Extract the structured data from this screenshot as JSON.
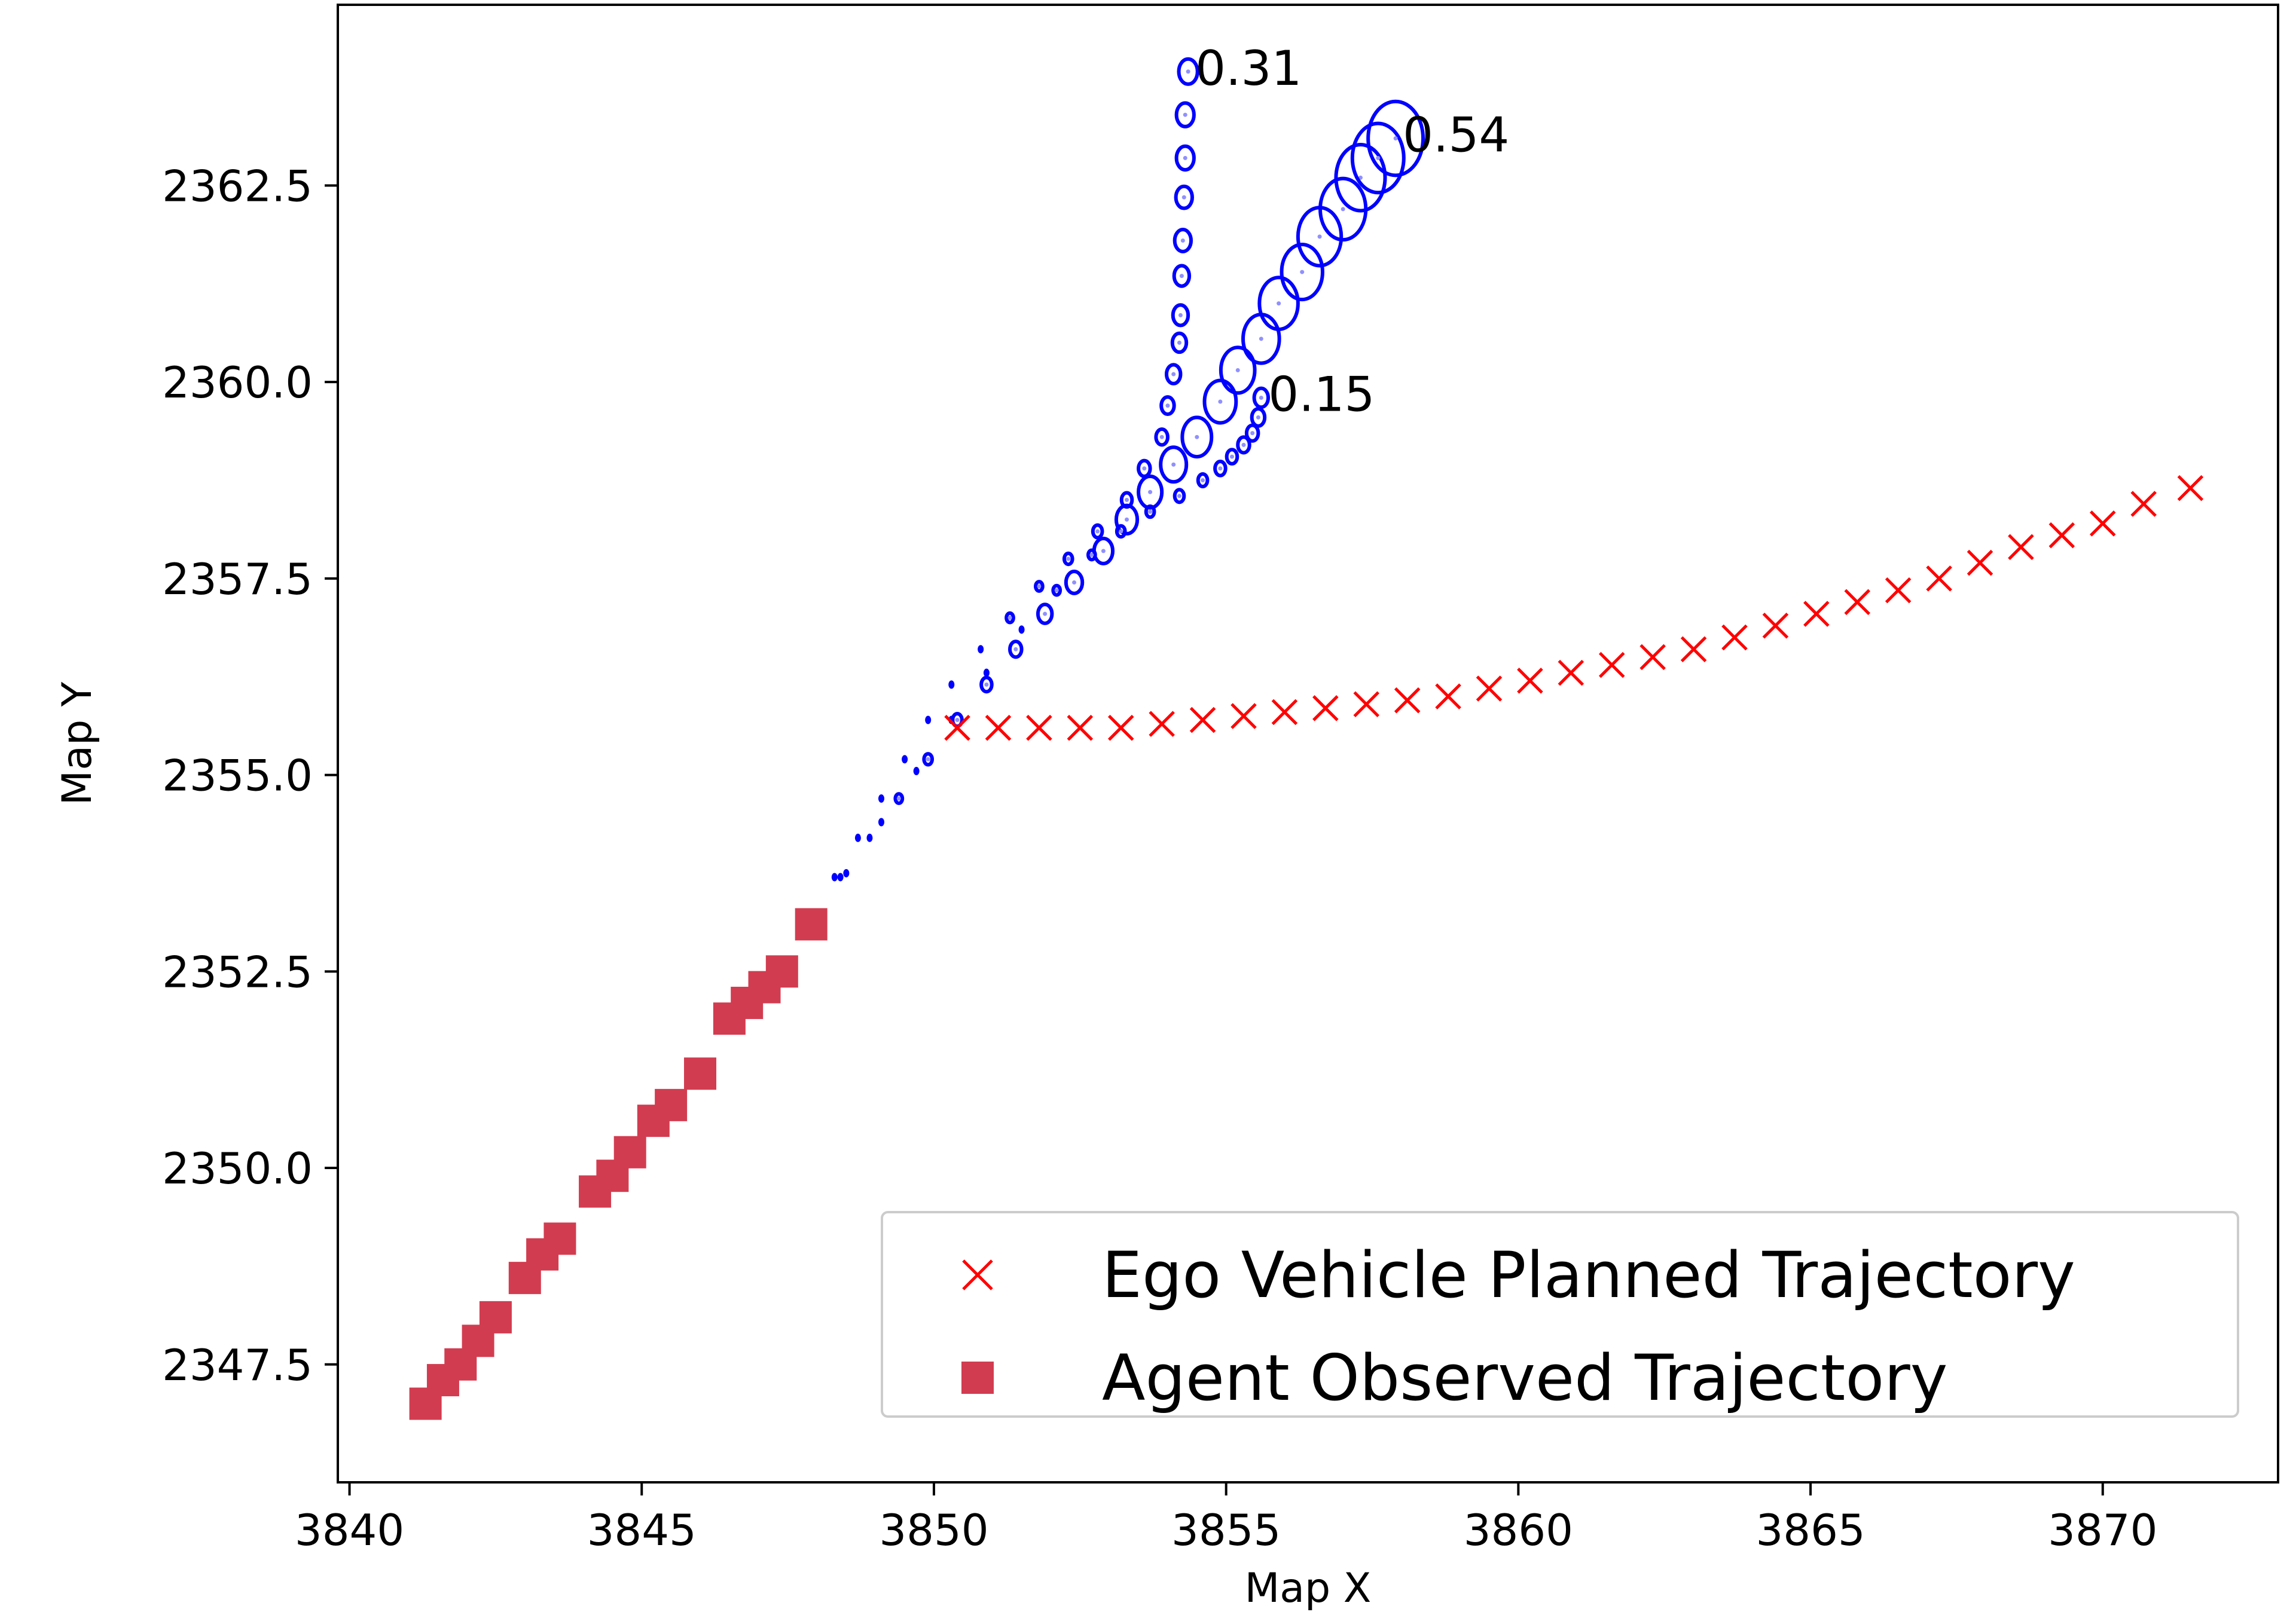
{
  "chart_data": {
    "type": "scatter",
    "title": "",
    "xlabel": "Map X",
    "ylabel": "Map Y",
    "xlim": [
      3839.8,
      3873.0
    ],
    "ylim": [
      2346.0,
      2364.8
    ],
    "xticks": [
      3840,
      3845,
      3850,
      3855,
      3860,
      3865,
      3870
    ],
    "yticks": [
      2347.5,
      2350.0,
      2352.5,
      2355.0,
      2357.5,
      2360.0,
      2362.5
    ],
    "grid": false,
    "legend_position": "lower-right",
    "legend": [
      {
        "label": "Ego Vehicle Planned Trajectory",
        "marker": "x",
        "color": "#ff0000"
      },
      {
        "label": "Agent Observed Trajectory",
        "marker": "square",
        "color": "#d23c50"
      }
    ],
    "series": [
      {
        "name": "Ego Vehicle Planned Trajectory",
        "marker": "x",
        "color": "#ff0000",
        "x": [
          3850.4,
          3851.1,
          3851.8,
          3852.5,
          3853.2,
          3853.9,
          3854.6,
          3855.3,
          3856.0,
          3856.7,
          3857.4,
          3858.1,
          3858.8,
          3859.5,
          3860.2,
          3860.9,
          3861.6,
          3862.3,
          3863.0,
          3863.7,
          3864.4,
          3865.1,
          3865.8,
          3866.5,
          3867.2,
          3867.9,
          3868.6,
          3869.3,
          3870.0,
          3870.7,
          3871.5
        ],
        "y": [
          2355.6,
          2355.6,
          2355.6,
          2355.6,
          2355.6,
          2355.65,
          2355.7,
          2355.75,
          2355.8,
          2355.85,
          2355.9,
          2355.95,
          2356.0,
          2356.1,
          2356.2,
          2356.3,
          2356.4,
          2356.5,
          2356.6,
          2356.75,
          2356.9,
          2357.05,
          2357.2,
          2357.35,
          2357.5,
          2357.7,
          2357.9,
          2358.05,
          2358.2,
          2358.45,
          2358.65
        ]
      },
      {
        "name": "Agent Observed Trajectory",
        "marker": "square",
        "color": "#d23c50",
        "x": [
          3841.3,
          3841.6,
          3841.9,
          3842.2,
          3842.5,
          3843.0,
          3843.3,
          3843.6,
          3844.2,
          3844.5,
          3844.8,
          3845.2,
          3845.5,
          3846.0,
          3846.5,
          3846.8,
          3847.1,
          3847.4,
          3847.9
        ],
        "y": [
          2347.0,
          2347.3,
          2347.5,
          2347.8,
          2348.1,
          2348.6,
          2348.9,
          2349.1,
          2349.7,
          2349.9,
          2350.2,
          2350.6,
          2350.8,
          2351.2,
          2351.9,
          2352.1,
          2352.3,
          2352.5,
          2353.1
        ]
      }
    ],
    "predictions": [
      {
        "probability_label": "0.31",
        "color": "#0000ff",
        "x": [
          3847.9,
          3848.3,
          3848.7,
          3849.1,
          3849.5,
          3849.9,
          3850.3,
          3850.8,
          3851.3,
          3851.8,
          3852.3,
          3852.8,
          3853.3,
          3853.6,
          3853.9,
          3854.0,
          3854.1,
          3854.2,
          3854.22,
          3854.24,
          3854.26,
          3854.28,
          3854.3,
          3854.3,
          3854.35
        ],
        "y": [
          2353.15,
          2353.7,
          2354.2,
          2354.7,
          2355.2,
          2355.7,
          2356.15,
          2356.6,
          2357.0,
          2357.4,
          2357.75,
          2358.1,
          2358.5,
          2358.9,
          2359.3,
          2359.7,
          2360.1,
          2360.5,
          2360.85,
          2361.35,
          2361.8,
          2362.35,
          2362.85,
          2363.4,
          2363.95
        ],
        "radius": [
          0.03,
          0.03,
          0.03,
          0.03,
          0.04,
          0.04,
          0.05,
          0.05,
          0.06,
          0.06,
          0.07,
          0.08,
          0.09,
          0.1,
          0.1,
          0.11,
          0.12,
          0.12,
          0.13,
          0.13,
          0.14,
          0.14,
          0.15,
          0.15,
          0.16
        ]
      },
      {
        "probability_label": "0.54",
        "color": "#0000ff",
        "x": [
          3847.9,
          3848.4,
          3848.9,
          3849.4,
          3849.9,
          3850.4,
          3850.9,
          3851.4,
          3851.9,
          3852.4,
          3852.9,
          3853.3,
          3853.7,
          3854.1,
          3854.5,
          3854.9,
          3855.2,
          3855.6,
          3855.9,
          3856.3,
          3856.6,
          3857.0,
          3857.3,
          3857.6,
          3857.9
        ],
        "y": [
          2353.15,
          2353.7,
          2354.2,
          2354.7,
          2355.2,
          2355.7,
          2356.15,
          2356.6,
          2357.05,
          2357.45,
          2357.85,
          2358.25,
          2358.6,
          2358.95,
          2359.3,
          2359.75,
          2360.15,
          2360.55,
          2361.0,
          2361.4,
          2361.85,
          2362.2,
          2362.6,
          2362.85,
          2363.1
        ],
        "radius": [
          0.03,
          0.04,
          0.05,
          0.06,
          0.07,
          0.08,
          0.09,
          0.1,
          0.12,
          0.14,
          0.16,
          0.18,
          0.2,
          0.22,
          0.25,
          0.27,
          0.29,
          0.31,
          0.33,
          0.35,
          0.37,
          0.39,
          0.42,
          0.44,
          0.47
        ]
      },
      {
        "probability_label": "0.15",
        "color": "#0000ff",
        "x": [
          3847.9,
          3848.5,
          3849.1,
          3849.7,
          3850.3,
          3850.9,
          3851.5,
          3852.1,
          3852.7,
          3853.2,
          3853.7,
          3854.2,
          3854.6,
          3854.9,
          3855.1,
          3855.3,
          3855.45,
          3855.55,
          3855.6
        ],
        "y": [
          2353.15,
          2353.75,
          2354.4,
          2355.05,
          2355.7,
          2356.3,
          2356.85,
          2357.35,
          2357.8,
          2358.1,
          2358.35,
          2358.55,
          2358.75,
          2358.9,
          2359.05,
          2359.2,
          2359.35,
          2359.55,
          2359.8
        ],
        "radius": [
          0.03,
          0.03,
          0.03,
          0.04,
          0.04,
          0.05,
          0.05,
          0.06,
          0.06,
          0.07,
          0.07,
          0.08,
          0.08,
          0.09,
          0.09,
          0.1,
          0.1,
          0.11,
          0.12
        ]
      }
    ]
  }
}
